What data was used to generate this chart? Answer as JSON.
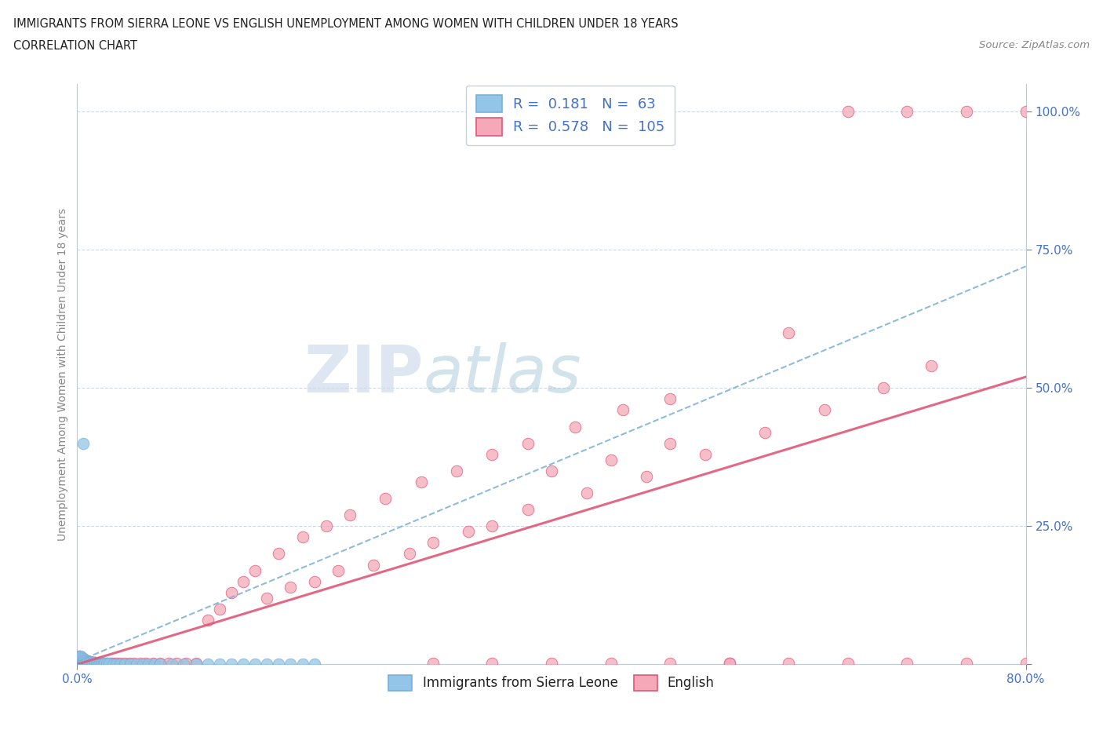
{
  "title": "IMMIGRANTS FROM SIERRA LEONE VS ENGLISH UNEMPLOYMENT AMONG WOMEN WITH CHILDREN UNDER 18 YEARS",
  "subtitle": "CORRELATION CHART",
  "source": "Source: ZipAtlas.com",
  "ylabel": "Unemployment Among Women with Children Under 18 years",
  "x_min": 0.0,
  "x_max": 0.8,
  "y_min": 0.0,
  "y_max": 1.05,
  "legend_label1": "Immigrants from Sierra Leone",
  "legend_label2": "English",
  "color1": "#92c5e8",
  "color2": "#f4a8b8",
  "trendline_color1": "#7bafd4",
  "trendline_color2": "#e05878",
  "R1": 0.181,
  "N1": 63,
  "R2": 0.578,
  "N2": 105,
  "watermark_zip": "ZIP",
  "watermark_atlas": "atlas",
  "blue_x": [
    0.001,
    0.001,
    0.002,
    0.002,
    0.002,
    0.003,
    0.003,
    0.003,
    0.004,
    0.004,
    0.004,
    0.005,
    0.005,
    0.005,
    0.006,
    0.006,
    0.007,
    0.007,
    0.008,
    0.008,
    0.009,
    0.009,
    0.01,
    0.01,
    0.011,
    0.012,
    0.013,
    0.014,
    0.015,
    0.016,
    0.017,
    0.018,
    0.019,
    0.02,
    0.021,
    0.022,
    0.023,
    0.025,
    0.027,
    0.03,
    0.033,
    0.036,
    0.04,
    0.045,
    0.05,
    0.055,
    0.06,
    0.065,
    0.07,
    0.08,
    0.09,
    0.1,
    0.11,
    0.12,
    0.13,
    0.14,
    0.15,
    0.16,
    0.17,
    0.18,
    0.19,
    0.2,
    0.005
  ],
  "blue_y": [
    0.005,
    0.01,
    0.008,
    0.012,
    0.015,
    0.006,
    0.009,
    0.014,
    0.005,
    0.008,
    0.012,
    0.004,
    0.007,
    0.01,
    0.005,
    0.008,
    0.004,
    0.007,
    0.003,
    0.006,
    0.003,
    0.005,
    0.003,
    0.005,
    0.004,
    0.003,
    0.003,
    0.003,
    0.003,
    0.002,
    0.002,
    0.002,
    0.002,
    0.002,
    0.002,
    0.002,
    0.002,
    0.002,
    0.002,
    0.001,
    0.001,
    0.001,
    0.001,
    0.001,
    0.001,
    0.001,
    0.001,
    0.001,
    0.001,
    0.001,
    0.001,
    0.001,
    0.001,
    0.001,
    0.001,
    0.001,
    0.001,
    0.001,
    0.001,
    0.001,
    0.001,
    0.001,
    0.4
  ],
  "pink_x": [
    0.001,
    0.001,
    0.001,
    0.002,
    0.002,
    0.002,
    0.003,
    0.003,
    0.003,
    0.004,
    0.004,
    0.005,
    0.005,
    0.005,
    0.006,
    0.006,
    0.007,
    0.007,
    0.008,
    0.008,
    0.009,
    0.009,
    0.01,
    0.01,
    0.011,
    0.012,
    0.013,
    0.014,
    0.015,
    0.016,
    0.017,
    0.018,
    0.019,
    0.02,
    0.022,
    0.025,
    0.028,
    0.03,
    0.033,
    0.036,
    0.04,
    0.044,
    0.048,
    0.053,
    0.058,
    0.064,
    0.07,
    0.077,
    0.084,
    0.092,
    0.1,
    0.11,
    0.12,
    0.13,
    0.14,
    0.15,
    0.17,
    0.19,
    0.21,
    0.23,
    0.26,
    0.29,
    0.32,
    0.35,
    0.38,
    0.42,
    0.46,
    0.5,
    0.55,
    0.6,
    0.65,
    0.7,
    0.75,
    0.8,
    0.65,
    0.7,
    0.75,
    0.8,
    0.4,
    0.45,
    0.5,
    0.3,
    0.35,
    0.25,
    0.2,
    0.22,
    0.18,
    0.16,
    0.28,
    0.33,
    0.38,
    0.43,
    0.48,
    0.53,
    0.58,
    0.63,
    0.68,
    0.72,
    0.6,
    0.55,
    0.5,
    0.45,
    0.4,
    0.35,
    0.3
  ],
  "pink_y": [
    0.005,
    0.008,
    0.012,
    0.006,
    0.009,
    0.014,
    0.005,
    0.008,
    0.012,
    0.005,
    0.009,
    0.004,
    0.007,
    0.01,
    0.004,
    0.007,
    0.004,
    0.007,
    0.003,
    0.006,
    0.003,
    0.005,
    0.003,
    0.005,
    0.003,
    0.003,
    0.003,
    0.003,
    0.003,
    0.002,
    0.002,
    0.002,
    0.002,
    0.002,
    0.002,
    0.002,
    0.002,
    0.002,
    0.002,
    0.002,
    0.002,
    0.002,
    0.002,
    0.002,
    0.002,
    0.002,
    0.002,
    0.002,
    0.002,
    0.002,
    0.002,
    0.08,
    0.1,
    0.13,
    0.15,
    0.17,
    0.2,
    0.23,
    0.25,
    0.27,
    0.3,
    0.33,
    0.35,
    0.38,
    0.4,
    0.43,
    0.46,
    0.48,
    0.002,
    0.002,
    0.002,
    0.002,
    0.002,
    0.002,
    1.0,
    1.0,
    1.0,
    1.0,
    0.35,
    0.37,
    0.4,
    0.22,
    0.25,
    0.18,
    0.15,
    0.17,
    0.14,
    0.12,
    0.2,
    0.24,
    0.28,
    0.31,
    0.34,
    0.38,
    0.42,
    0.46,
    0.5,
    0.54,
    0.6,
    0.002,
    0.002,
    0.002,
    0.002,
    0.002,
    0.002
  ],
  "trend1_x0": 0.0,
  "trend1_y0": 0.005,
  "trend1_x1": 0.8,
  "trend1_y1": 0.72,
  "trend2_x0": 0.0,
  "trend2_y0": 0.0,
  "trend2_x1": 0.8,
  "trend2_y1": 0.52
}
